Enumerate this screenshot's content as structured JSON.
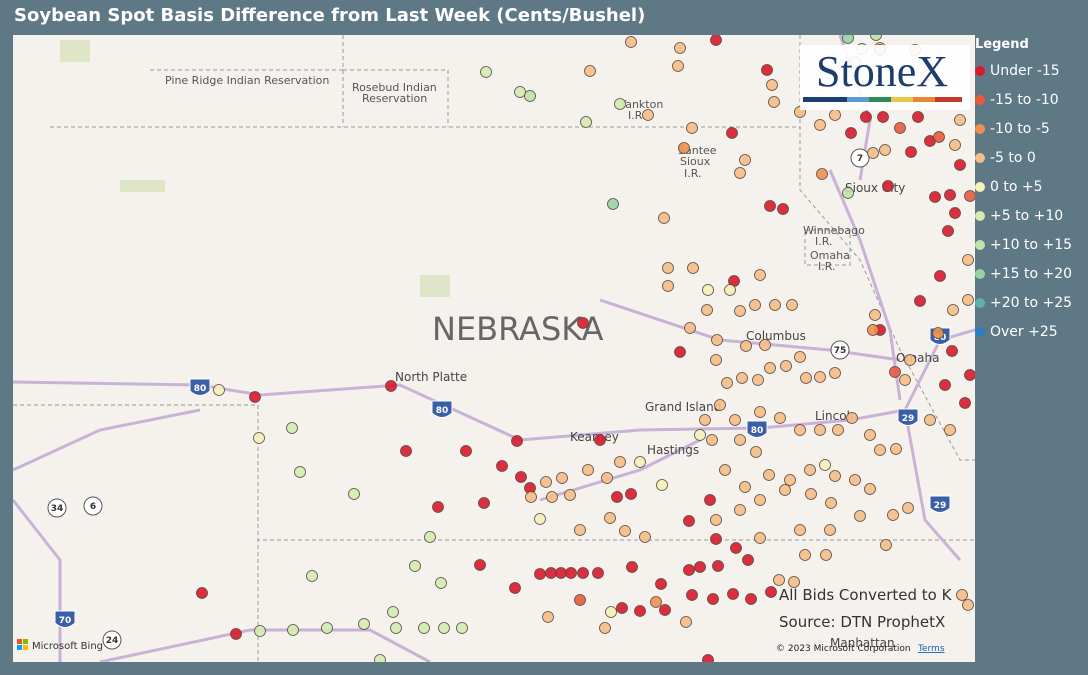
{
  "title": "Soybean Spot Basis Difference from Last Week (Cents/Bushel)",
  "legend": {
    "title": "Legend",
    "items": [
      {
        "label": "Under -15",
        "color": "#d8182b"
      },
      {
        "label": "-15 to -10",
        "color": "#e85a3c"
      },
      {
        "label": "-10 to -5",
        "color": "#f0904e"
      },
      {
        "label": "-5 to 0",
        "color": "#f7bd86"
      },
      {
        "label": "0 to +5",
        "color": "#f5f1b8"
      },
      {
        "label": "+5 to +10",
        "color": "#d4ebb0"
      },
      {
        "label": "+10 to +15",
        "color": "#bfe2a6"
      },
      {
        "label": "+15 to +20",
        "color": "#98d2a4"
      },
      {
        "label": "+20 to +25",
        "color": "#5fb1a9"
      },
      {
        "label": "Over +25",
        "color": "#2b7fc0"
      }
    ]
  },
  "map_labels": [
    "Pine Ridge Indian Reservation",
    "Rosebud Indian",
    "Reservation",
    "Yankton",
    "I.R.",
    "Santee",
    "Sioux",
    "I.R.",
    "Winnebago",
    "I.R.",
    "Omaha",
    "I.R.",
    "NEBRASKA",
    "North Platte",
    "Grand Island",
    "Kearney",
    "Hastings",
    "Columbus",
    "Omaha",
    "Lincoln",
    "Sioux City",
    "Manhattan"
  ],
  "road_shields": [
    "80",
    "80",
    "80",
    "34",
    "6",
    "70",
    "24",
    "29",
    "29",
    "75",
    "7",
    "80"
  ],
  "notes": [
    "All Bids Converted to K",
    "Source: DTN ProphetX"
  ],
  "attribution": {
    "copyright": "© 2023 Microsoft Corporation",
    "terms": "Terms",
    "provider": "Microsoft Bing"
  },
  "logo": "StoneX"
}
